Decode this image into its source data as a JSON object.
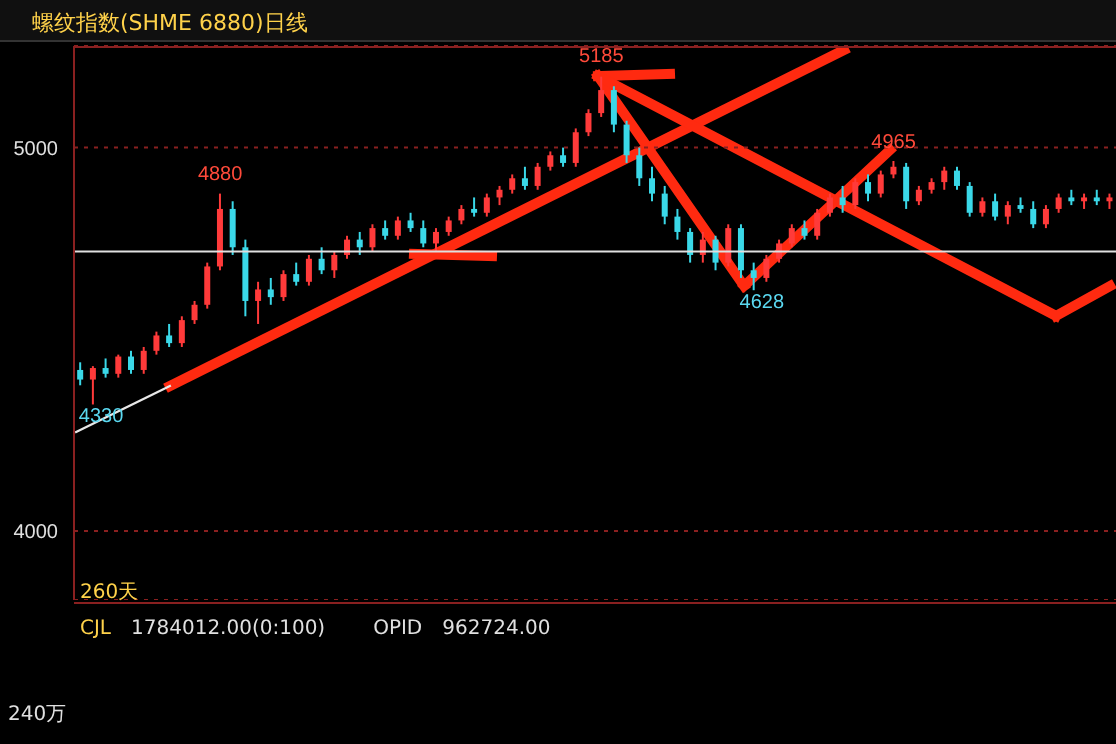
{
  "chart_data": {
    "type": "candlestick",
    "title": "螺纹指数(SHME 6880)日线",
    "categories": [
      null,
      null,
      null,
      null,
      null,
      null,
      null,
      null,
      null,
      null,
      null,
      null,
      null,
      null,
      null,
      null,
      null,
      null,
      null,
      null,
      null,
      null,
      null,
      null,
      null,
      null,
      null,
      null,
      null,
      null,
      null,
      null,
      null,
      null,
      null,
      null,
      null,
      null,
      null,
      null,
      null,
      null,
      null,
      null,
      null,
      null,
      null,
      null,
      null,
      null,
      null,
      null,
      null,
      null,
      null,
      null,
      null,
      null,
      null,
      null,
      null,
      null,
      null,
      null,
      null,
      null,
      null,
      null,
      null,
      null,
      null,
      null,
      null,
      null,
      null,
      null,
      null,
      null,
      null,
      null,
      null,
      null
    ],
    "ohlc": [
      [
        4420,
        4440,
        4380,
        4395
      ],
      [
        4395,
        4430,
        4330,
        4425
      ],
      [
        4425,
        4450,
        4400,
        4410
      ],
      [
        4410,
        4460,
        4400,
        4455
      ],
      [
        4455,
        4470,
        4410,
        4420
      ],
      [
        4420,
        4480,
        4410,
        4470
      ],
      [
        4470,
        4520,
        4460,
        4510
      ],
      [
        4510,
        4540,
        4480,
        4490
      ],
      [
        4490,
        4560,
        4480,
        4550
      ],
      [
        4550,
        4600,
        4540,
        4590
      ],
      [
        4590,
        4700,
        4580,
        4690
      ],
      [
        4690,
        4880,
        4680,
        4840
      ],
      [
        4840,
        4860,
        4720,
        4740
      ],
      [
        4740,
        4760,
        4560,
        4600
      ],
      [
        4600,
        4650,
        4540,
        4630
      ],
      [
        4630,
        4660,
        4590,
        4610
      ],
      [
        4610,
        4680,
        4600,
        4670
      ],
      [
        4670,
        4700,
        4640,
        4650
      ],
      [
        4650,
        4720,
        4640,
        4710
      ],
      [
        4710,
        4740,
        4670,
        4680
      ],
      [
        4680,
        4730,
        4660,
        4720
      ],
      [
        4720,
        4770,
        4710,
        4760
      ],
      [
        4760,
        4780,
        4720,
        4740
      ],
      [
        4740,
        4800,
        4730,
        4790
      ],
      [
        4790,
        4810,
        4760,
        4770
      ],
      [
        4770,
        4820,
        4760,
        4810
      ],
      [
        4810,
        4830,
        4780,
        4790
      ],
      [
        4790,
        4810,
        4740,
        4750
      ],
      [
        4750,
        4790,
        4730,
        4780
      ],
      [
        4780,
        4820,
        4770,
        4810
      ],
      [
        4810,
        4850,
        4800,
        4840
      ],
      [
        4840,
        4870,
        4820,
        4830
      ],
      [
        4830,
        4880,
        4820,
        4870
      ],
      [
        4870,
        4900,
        4850,
        4890
      ],
      [
        4890,
        4930,
        4880,
        4920
      ],
      [
        4920,
        4950,
        4890,
        4900
      ],
      [
        4900,
        4960,
        4890,
        4950
      ],
      [
        4950,
        4990,
        4940,
        4980
      ],
      [
        4980,
        5000,
        4950,
        4960
      ],
      [
        4960,
        5050,
        4950,
        5040
      ],
      [
        5040,
        5100,
        5030,
        5090
      ],
      [
        5090,
        5185,
        5080,
        5150
      ],
      [
        5150,
        5160,
        5040,
        5060
      ],
      [
        5060,
        5070,
        4960,
        4980
      ],
      [
        4980,
        5000,
        4900,
        4920
      ],
      [
        4920,
        4950,
        4860,
        4880
      ],
      [
        4880,
        4900,
        4800,
        4820
      ],
      [
        4820,
        4840,
        4760,
        4780
      ],
      [
        4780,
        4790,
        4700,
        4720
      ],
      [
        4720,
        4780,
        4700,
        4760
      ],
      [
        4760,
        4770,
        4680,
        4700
      ],
      [
        4700,
        4800,
        4690,
        4790
      ],
      [
        4790,
        4800,
        4660,
        4680
      ],
      [
        4680,
        4700,
        4628,
        4660
      ],
      [
        4660,
        4720,
        4650,
        4710
      ],
      [
        4710,
        4760,
        4700,
        4750
      ],
      [
        4750,
        4800,
        4740,
        4790
      ],
      [
        4790,
        4810,
        4760,
        4770
      ],
      [
        4770,
        4840,
        4760,
        4830
      ],
      [
        4830,
        4880,
        4820,
        4870
      ],
      [
        4870,
        4900,
        4830,
        4850
      ],
      [
        4850,
        4920,
        4840,
        4910
      ],
      [
        4910,
        4930,
        4860,
        4880
      ],
      [
        4880,
        4940,
        4870,
        4930
      ],
      [
        4930,
        4965,
        4920,
        4950
      ],
      [
        4950,
        4960,
        4840,
        4860
      ],
      [
        4860,
        4900,
        4850,
        4890
      ],
      [
        4890,
        4920,
        4880,
        4910
      ],
      [
        4910,
        4950,
        4890,
        4940
      ],
      [
        4940,
        4950,
        4890,
        4900
      ],
      [
        4900,
        4910,
        4820,
        4830
      ],
      [
        4830,
        4870,
        4820,
        4860
      ],
      [
        4860,
        4880,
        4810,
        4820
      ],
      [
        4820,
        4860,
        4800,
        4850
      ],
      [
        4850,
        4870,
        4830,
        4840
      ],
      [
        4840,
        4860,
        4790,
        4800
      ],
      [
        4800,
        4850,
        4790,
        4840
      ],
      [
        4840,
        4880,
        4830,
        4870
      ],
      [
        4870,
        4890,
        4850,
        4860
      ],
      [
        4860,
        4880,
        4840,
        4870
      ],
      [
        4870,
        4890,
        4850,
        4860
      ],
      [
        4860,
        4880,
        4840,
        4870
      ]
    ],
    "ylim": [
      3820,
      5265
    ],
    "yticks": [
      4000,
      5000
    ],
    "grid": "y",
    "tick_labels": "y",
    "ref_lines": [
      {
        "axis": "y",
        "value": 4729,
        "color": "#e0e0e0",
        "line_style": "solid"
      }
    ],
    "annotations": [
      {
        "text": "4880",
        "y": 4880
      },
      {
        "text": "5185",
        "y": 5185
      },
      {
        "text": "4628",
        "y": 4628
      },
      {
        "text": "4965",
        "y": 4965
      },
      {
        "text": "4330",
        "y": 4330
      },
      "260天",
      "CJL",
      "1784012.00(0:100)",
      "OPID",
      "962724.00",
      "240万"
    ]
  }
}
